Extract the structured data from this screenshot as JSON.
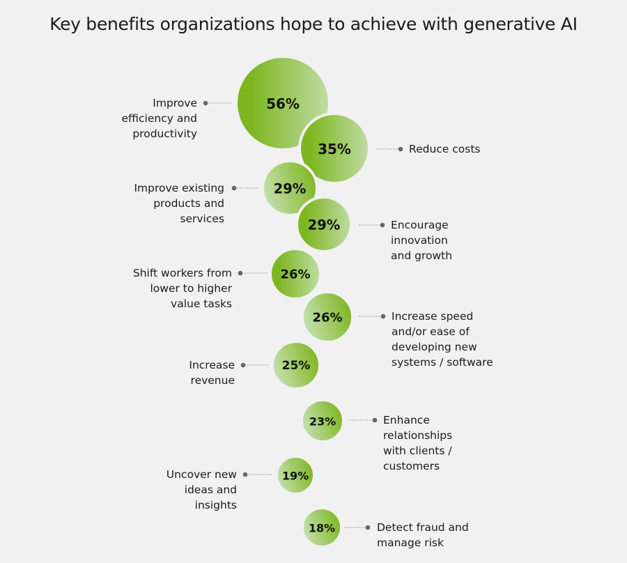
{
  "chart_data": {
    "type": "bubble",
    "title": "Key benefits organizations hope to achieve with generative AI",
    "unit": "%",
    "items": [
      {
        "value": 56,
        "display": "56%",
        "side": "left",
        "label": [
          "Improve",
          "efficiency and",
          "productivity"
        ]
      },
      {
        "value": 35,
        "display": "35%",
        "side": "right",
        "label": [
          "Reduce costs"
        ]
      },
      {
        "value": 29,
        "display": "29%",
        "side": "left",
        "label": [
          "Improve existing",
          "products and",
          "services"
        ]
      },
      {
        "value": 29,
        "display": "29%",
        "side": "right",
        "label": [
          "Encourage",
          "innovation",
          "and growth"
        ]
      },
      {
        "value": 26,
        "display": "26%",
        "side": "left",
        "label": [
          "Shift workers from",
          "lower to higher",
          "value tasks"
        ]
      },
      {
        "value": 26,
        "display": "26%",
        "side": "right",
        "label": [
          "Increase speed",
          "and/or ease of",
          "developing new",
          "systems / software"
        ]
      },
      {
        "value": 25,
        "display": "25%",
        "side": "left",
        "label": [
          "Increase",
          "revenue"
        ]
      },
      {
        "value": 23,
        "display": "23%",
        "side": "right",
        "label": [
          "Enhance",
          "relationships",
          "with clients /",
          "customers"
        ]
      },
      {
        "value": 19,
        "display": "19%",
        "side": "left",
        "label": [
          "Uncover new",
          "ideas and",
          "insights"
        ]
      },
      {
        "value": 18,
        "display": "18%",
        "side": "right",
        "label": [
          "Detect fraud and",
          "manage risk"
        ]
      }
    ],
    "colors": {
      "dark_green": "#7db61f",
      "light_green": "#bfdda5",
      "leader": "#666666",
      "background": "#f1f1f1"
    }
  }
}
